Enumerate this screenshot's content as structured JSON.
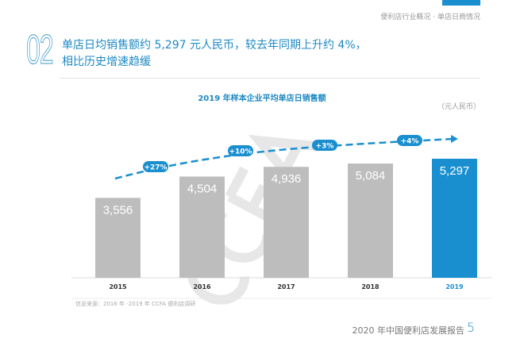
{
  "header": {
    "breadcrumb": "便利店行业概况 · 单店日商情况",
    "section_number": "02",
    "headline_line1": "单店日均销售额约 5,297 元人民币，较去年同期上升约 4%，",
    "headline_line2": "相比历史增速趋缓"
  },
  "watermark": "CCFA",
  "chart_data": {
    "type": "bar",
    "title": "2019 年样本企业平均单店日销售额",
    "unit": "（元人民币）",
    "categories": [
      "2015",
      "2016",
      "2017",
      "2018",
      "2019"
    ],
    "values": [
      3556,
      4504,
      4936,
      5084,
      5297
    ],
    "data_labels": [
      "3,556",
      "4,504",
      "4,936",
      "5,084",
      "5,297"
    ],
    "growth_labels": [
      "+27%",
      "+10%",
      "+3%",
      "+4%"
    ],
    "ylim": [
      0,
      7000
    ],
    "grid": false,
    "colors": {
      "default": "#bdbdbd",
      "highlight": "#1a8fd0"
    }
  },
  "source": "信息来源：2016 年 -2019 年 CCFA 便利店调研",
  "footer": {
    "report_title": "2020 年中国便利店发展报告",
    "page_number": "5"
  }
}
